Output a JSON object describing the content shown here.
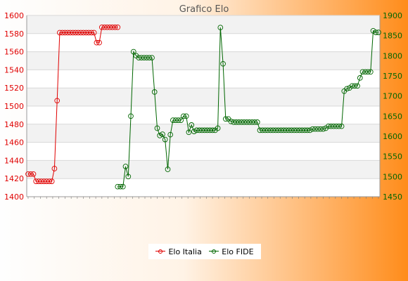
{
  "chart_data": {
    "type": "line",
    "title": "Grafico Elo",
    "left_axis": {
      "min": 1400,
      "max": 1600,
      "step": 20,
      "ticks": [
        "1400",
        "1420",
        "1440",
        "1460",
        "1480",
        "1500",
        "1520",
        "1540",
        "1560",
        "1580",
        "1600"
      ],
      "color": "#e00000"
    },
    "right_axis": {
      "min": 1450,
      "max": 1900,
      "step": 50,
      "ticks": [
        "1450",
        "1500",
        "1550",
        "1600",
        "1650",
        "1700",
        "1750",
        "1800",
        "1850",
        "1900"
      ],
      "color": "#006600"
    },
    "point_count": 134,
    "grid": true,
    "legend_position": "bottom",
    "series": [
      {
        "name": "Elo Italia",
        "axis": "left",
        "color": "#e00000",
        "points": [
          [
            0,
            1425
          ],
          [
            1,
            1425
          ],
          [
            2,
            1425
          ],
          [
            3,
            1417
          ],
          [
            4,
            1417
          ],
          [
            5,
            1417
          ],
          [
            6,
            1417
          ],
          [
            7,
            1417
          ],
          [
            8,
            1417
          ],
          [
            9,
            1417
          ],
          [
            10,
            1431
          ],
          [
            11,
            1506
          ],
          [
            12,
            1581
          ],
          [
            13,
            1581
          ],
          [
            14,
            1581
          ],
          [
            15,
            1581
          ],
          [
            16,
            1581
          ],
          [
            17,
            1581
          ],
          [
            18,
            1581
          ],
          [
            19,
            1581
          ],
          [
            20,
            1581
          ],
          [
            21,
            1581
          ],
          [
            22,
            1581
          ],
          [
            23,
            1581
          ],
          [
            24,
            1581
          ],
          [
            25,
            1581
          ],
          [
            26,
            1570
          ],
          [
            27,
            1570
          ],
          [
            28,
            1587
          ],
          [
            29,
            1587
          ],
          [
            30,
            1587
          ],
          [
            31,
            1587
          ],
          [
            32,
            1587
          ],
          [
            33,
            1587
          ],
          [
            34,
            1587
          ]
        ]
      },
      {
        "name": "Elo FIDE",
        "axis": "right",
        "color": "#006600",
        "points": [
          [
            34,
            1475
          ],
          [
            35,
            1475
          ],
          [
            36,
            1475
          ],
          [
            37,
            1525
          ],
          [
            38,
            1500
          ],
          [
            39,
            1650
          ],
          [
            40,
            1810
          ],
          [
            41,
            1800
          ],
          [
            42,
            1795
          ],
          [
            43,
            1795
          ],
          [
            44,
            1795
          ],
          [
            45,
            1795
          ],
          [
            46,
            1795
          ],
          [
            47,
            1795
          ],
          [
            48,
            1710
          ],
          [
            49,
            1620
          ],
          [
            50,
            1602
          ],
          [
            51,
            1605
          ],
          [
            52,
            1592
          ],
          [
            53,
            1518
          ],
          [
            54,
            1604
          ],
          [
            55,
            1640
          ],
          [
            56,
            1640
          ],
          [
            57,
            1640
          ],
          [
            58,
            1640
          ],
          [
            59,
            1650
          ],
          [
            60,
            1650
          ],
          [
            61,
            1610
          ],
          [
            62,
            1628
          ],
          [
            63,
            1612
          ],
          [
            64,
            1615
          ],
          [
            65,
            1615
          ],
          [
            66,
            1615
          ],
          [
            67,
            1615
          ],
          [
            68,
            1615
          ],
          [
            69,
            1615
          ],
          [
            70,
            1615
          ],
          [
            71,
            1615
          ],
          [
            72,
            1620
          ],
          [
            73,
            1870
          ],
          [
            74,
            1780
          ],
          [
            75,
            1643
          ],
          [
            76,
            1643
          ],
          [
            77,
            1637
          ],
          [
            78,
            1635
          ],
          [
            79,
            1635
          ],
          [
            80,
            1635
          ],
          [
            81,
            1635
          ],
          [
            82,
            1635
          ],
          [
            83,
            1635
          ],
          [
            84,
            1635
          ],
          [
            85,
            1635
          ],
          [
            86,
            1635
          ],
          [
            87,
            1635
          ],
          [
            88,
            1615
          ],
          [
            89,
            1615
          ],
          [
            90,
            1615
          ],
          [
            91,
            1615
          ],
          [
            92,
            1615
          ],
          [
            93,
            1615
          ],
          [
            94,
            1615
          ],
          [
            95,
            1615
          ],
          [
            96,
            1615
          ],
          [
            97,
            1615
          ],
          [
            98,
            1615
          ],
          [
            99,
            1615
          ],
          [
            100,
            1615
          ],
          [
            101,
            1615
          ],
          [
            102,
            1615
          ],
          [
            103,
            1615
          ],
          [
            104,
            1615
          ],
          [
            105,
            1615
          ],
          [
            106,
            1615
          ],
          [
            107,
            1615
          ],
          [
            108,
            1618
          ],
          [
            109,
            1618
          ],
          [
            110,
            1618
          ],
          [
            111,
            1618
          ],
          [
            112,
            1618
          ],
          [
            113,
            1620
          ],
          [
            114,
            1625
          ],
          [
            115,
            1625
          ],
          [
            116,
            1625
          ],
          [
            117,
            1625
          ],
          [
            118,
            1625
          ],
          [
            119,
            1625
          ],
          [
            120,
            1712
          ],
          [
            121,
            1718
          ],
          [
            122,
            1720
          ],
          [
            123,
            1725
          ],
          [
            124,
            1725
          ],
          [
            125,
            1725
          ],
          [
            126,
            1745
          ],
          [
            127,
            1760
          ],
          [
            128,
            1760
          ],
          [
            129,
            1760
          ],
          [
            130,
            1760
          ],
          [
            131,
            1862
          ],
          [
            132,
            1858
          ],
          [
            133,
            1858
          ]
        ]
      }
    ],
    "x_tick_count": 58
  }
}
